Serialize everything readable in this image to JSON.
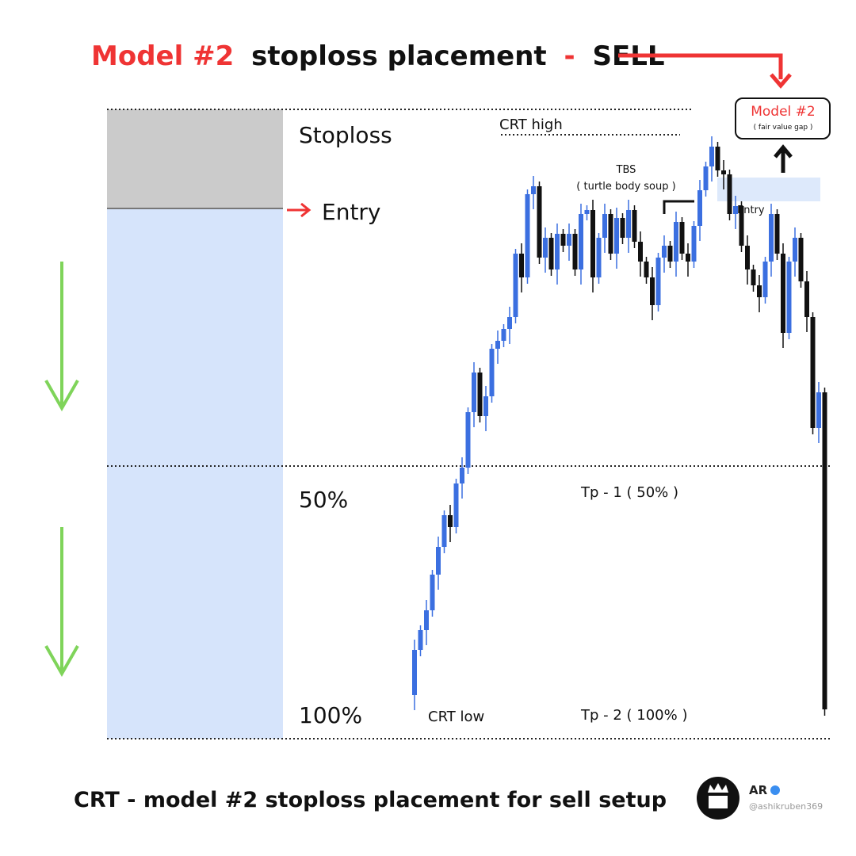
{
  "header": {
    "title_highlight": "Model #2",
    "title_main": "stoploss placement",
    "title_dash": "-",
    "title_end": "SELL"
  },
  "zones": {
    "stoploss": "Stoploss",
    "entry": "Entry",
    "half": "50%",
    "full": "100%"
  },
  "chart": {
    "crt_high": "CRT high",
    "crt_low": "CRT low",
    "tbs": "TBS",
    "tbs_note": "( turtle body soup )",
    "entry": "Entry",
    "tp1": "Tp - 1 ( 50% )",
    "tp2": "Tp - 2 ( 100% )"
  },
  "callout": {
    "title": "Model #2",
    "note": "( fair value gap )"
  },
  "footer": {
    "caption": "CRT - model #2 stoploss placement for sell setup",
    "brand": "AR",
    "handle": "@ashikruben369"
  }
}
